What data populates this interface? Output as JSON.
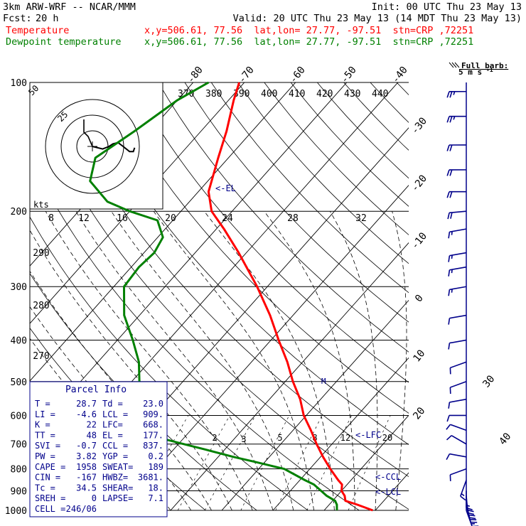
{
  "header": {
    "model": "3km ARW-WRF -- NCAR/MMM",
    "init": "Init: 00 UTC Thu 23 May 13",
    "fcst_label": "Fcst:",
    "fcst_hours": "20 h",
    "valid": "Valid: 20 UTC Thu 23 May 13 (14 MDT Thu 23 May 13)",
    "temp_label": "Temperature",
    "dew_label": "Dewpoint temperature",
    "temp_info": "x,y=506.61, 77.56  lat,lon= 27.77, -97.51  stn=CRP ,72251",
    "dew_info": "x,y=506.61, 77.56  lat,lon= 27.77, -97.51  stn=CRP ,72251"
  },
  "colors": {
    "temperature": "#ff0000",
    "dewpoint": "#008000",
    "wind": "#00008b",
    "box": "#00008b"
  },
  "barb_legend": {
    "line1": "Full barb:",
    "line2": "5 m s",
    "sup": "-1"
  },
  "hodograph": {
    "units": "kts",
    "ring_labels": [
      "50",
      "25"
    ]
  },
  "parcel_info": {
    "title": "Parcel Info",
    "rows": [
      [
        "T  =",
        "28.7",
        "Td =",
        "23.0"
      ],
      [
        "LI =",
        "-4.6",
        "LCL =",
        "909."
      ],
      [
        "K  =",
        "22",
        "LFC=",
        "668."
      ],
      [
        "TT =",
        "48",
        "EL =",
        "177."
      ],
      [
        "SVI =",
        "-0.7",
        "CCL =",
        "837."
      ],
      [
        "PW =",
        "3.82",
        "YGP =",
        "0.2"
      ],
      [
        "CAPE =",
        "1958",
        "SWEAT=",
        "189"
      ],
      [
        "CIN =",
        "-167",
        "HWBZ=",
        "3681."
      ],
      [
        "Tc =",
        "34.5",
        "SHEAR=",
        "18."
      ],
      [
        "SREH =",
        "0",
        "LAPSE=",
        "7.1"
      ],
      [
        "CELL =",
        "246/06",
        "",
        ""
      ]
    ]
  },
  "chart_data": {
    "type": "skew-t log-p",
    "y_axis": {
      "quantity": "pressure (hPa)",
      "scale": "log",
      "range": [
        1000,
        100
      ],
      "ticks": [
        100,
        200,
        300,
        400,
        500,
        600,
        700,
        800,
        900,
        1000
      ]
    },
    "isotherms_C": [
      -90,
      -80,
      -70,
      -60,
      -50,
      -40,
      -30,
      -20,
      -10,
      0,
      10,
      20,
      30,
      40
    ],
    "isotherm_labels": [
      "-80",
      "-70",
      "-60",
      "-50",
      "-40",
      "-30",
      "-20",
      "-10",
      "0",
      "10",
      "20",
      "30",
      "40"
    ],
    "theta_labels_K": [
      "370",
      "380",
      "390",
      "400",
      "410",
      "420",
      "430",
      "440"
    ],
    "theta_labels_lower": [
      "290",
      "280",
      "270"
    ],
    "mixing_ratio_labels": [
      "8",
      "12",
      "16",
      "20",
      "24",
      "28",
      "32"
    ],
    "mixing_ratio_labels_lower": [
      "2",
      "3",
      "5",
      "8",
      "12",
      "20"
    ],
    "levels": {
      "el": "<-EL",
      "lfc": "<-LFC",
      "ccl": "<-CCL",
      "lcl": "<-LCL"
    },
    "series": [
      {
        "name": "Temperature",
        "color": "#ff0000",
        "p": [
          1000,
          970,
          950,
          925,
          900,
          870,
          850,
          800,
          750,
          700,
          650,
          600,
          550,
          500,
          450,
          400,
          350,
          300,
          250,
          220,
          200,
          180,
          150,
          130,
          110,
          100
        ],
        "t": [
          29.5,
          25.5,
          22.5,
          21.5,
          20.0,
          19.0,
          17.5,
          14.0,
          10.5,
          7.0,
          3.5,
          -0.5,
          -4.0,
          -8.5,
          -13.0,
          -18.5,
          -24.5,
          -32.0,
          -41.5,
          -48.5,
          -54.0,
          -58.0,
          -62.0,
          -65.0,
          -69.0,
          -71.0
        ]
      },
      {
        "name": "Dewpoint temperature",
        "color": "#008000",
        "p": [
          1000,
          970,
          950,
          925,
          900,
          870,
          850,
          800,
          770,
          750,
          720,
          700,
          680,
          665,
          650,
          600,
          550,
          500,
          450,
          400,
          350,
          300,
          270,
          250,
          230,
          210,
          200,
          190,
          170,
          150,
          130,
          110,
          100
        ],
        "t": [
          22.5,
          21.5,
          20.5,
          18.0,
          16.0,
          13.5,
          11.0,
          5.0,
          -2.0,
          -7.0,
          -14.0,
          -19.0,
          -24.0,
          -29.5,
          -31.0,
          -33.5,
          -36.0,
          -38.5,
          -42.0,
          -47.0,
          -53.0,
          -58.0,
          -58.5,
          -58.0,
          -59.0,
          -63.0,
          -70.0,
          -76.0,
          -83.0,
          -86.0,
          -83.0,
          -80.0,
          -77.0
        ]
      }
    ],
    "hodograph_trace": [
      [
        0,
        0
      ],
      [
        8,
        -2
      ],
      [
        13,
        0
      ],
      [
        16,
        2
      ],
      [
        20,
        3
      ],
      [
        24,
        0
      ],
      [
        29,
        -4
      ],
      [
        32,
        -4
      ],
      [
        33,
        -1
      ]
    ],
    "wind_profile": [
      {
        "p": 1000,
        "dir": 160,
        "spd": 5
      },
      {
        "p": 975,
        "dir": 165,
        "spd": 7
      },
      {
        "p": 950,
        "dir": 170,
        "spd": 7
      },
      {
        "p": 925,
        "dir": 175,
        "spd": 7
      },
      {
        "p": 900,
        "dir": 180,
        "spd": 6
      },
      {
        "p": 850,
        "dir": 200,
        "spd": 5
      },
      {
        "p": 800,
        "dir": 250,
        "spd": 4
      },
      {
        "p": 750,
        "dir": 280,
        "spd": 4
      },
      {
        "p": 700,
        "dir": 300,
        "spd": 4
      },
      {
        "p": 650,
        "dir": 290,
        "spd": 4
      },
      {
        "p": 600,
        "dir": 270,
        "spd": 4
      },
      {
        "p": 550,
        "dir": 260,
        "spd": 3
      },
      {
        "p": 500,
        "dir": 250,
        "spd": 3
      },
      {
        "p": 450,
        "dir": 250,
        "spd": 4
      },
      {
        "p": 400,
        "dir": 260,
        "spd": 4
      },
      {
        "p": 350,
        "dir": 260,
        "spd": 4
      },
      {
        "p": 300,
        "dir": 260,
        "spd": 5
      },
      {
        "p": 270,
        "dir": 260,
        "spd": 5
      },
      {
        "p": 250,
        "dir": 260,
        "spd": 6
      },
      {
        "p": 220,
        "dir": 260,
        "spd": 6
      },
      {
        "p": 200,
        "dir": 265,
        "spd": 7
      },
      {
        "p": 180,
        "dir": 270,
        "spd": 7
      },
      {
        "p": 160,
        "dir": 270,
        "spd": 8
      },
      {
        "p": 140,
        "dir": 270,
        "spd": 8
      },
      {
        "p": 120,
        "dir": 270,
        "spd": 9
      },
      {
        "p": 105,
        "dir": 270,
        "spd": 9
      }
    ]
  }
}
